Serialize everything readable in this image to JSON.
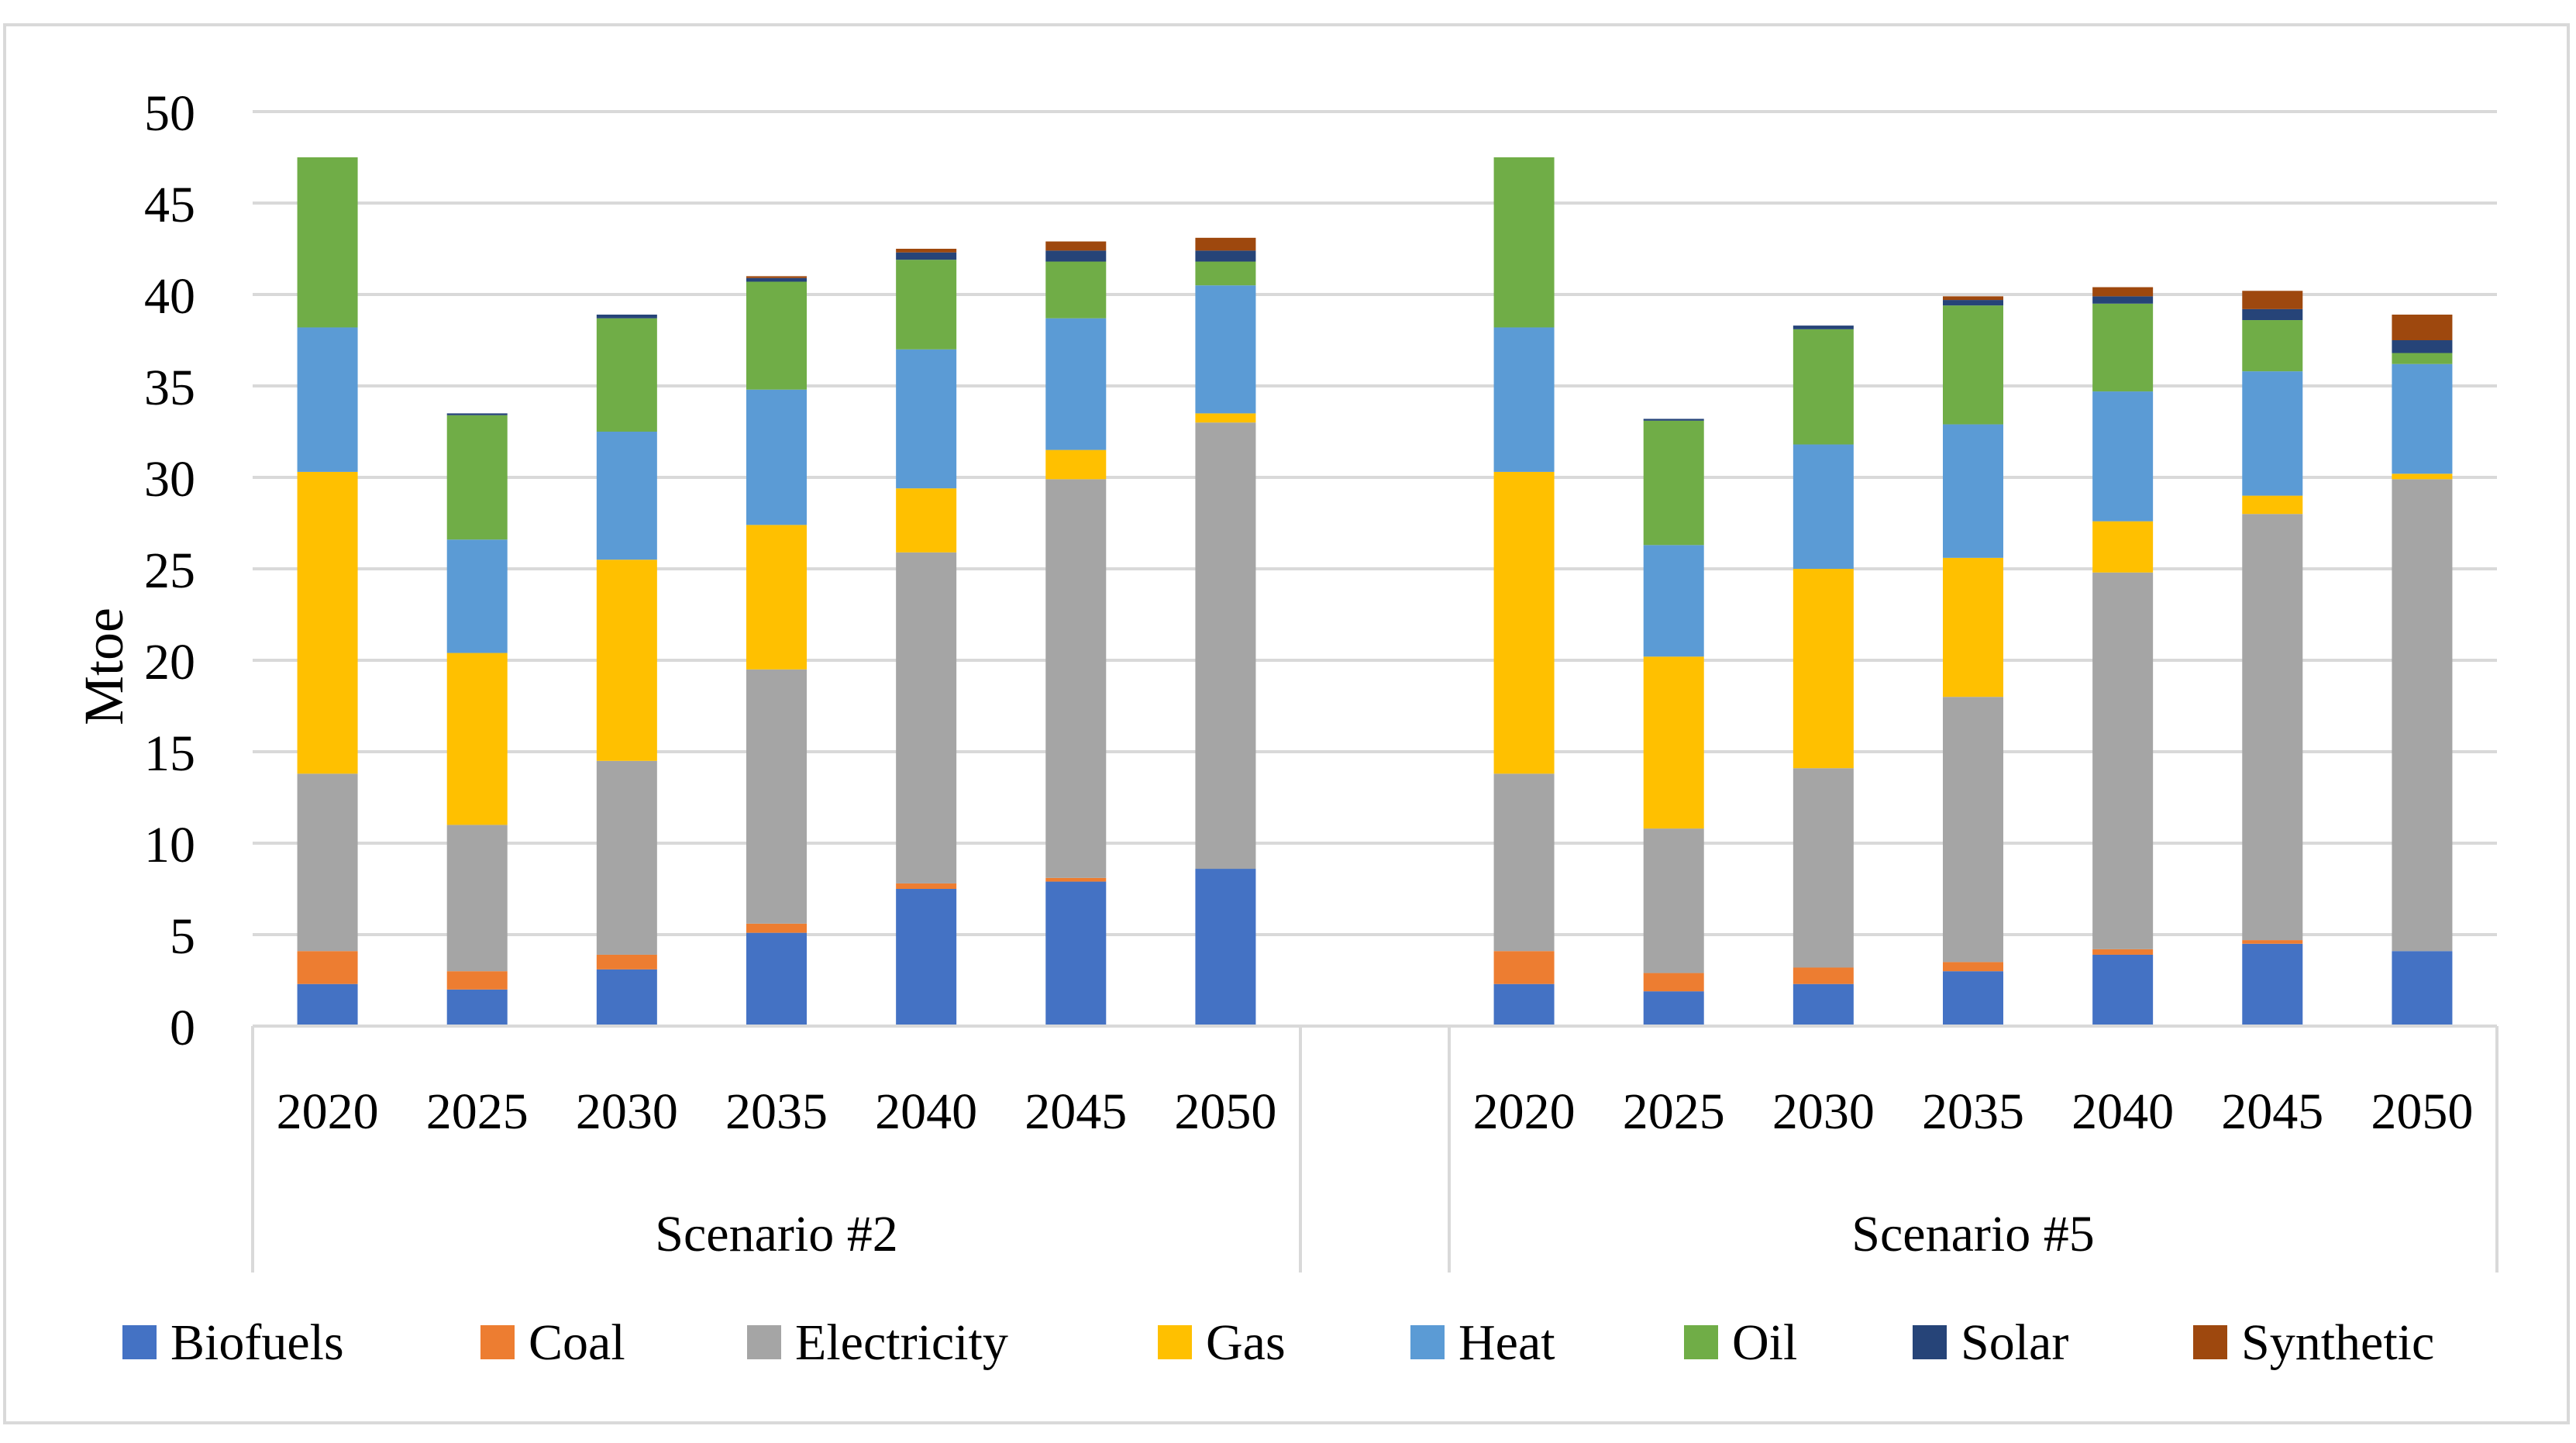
{
  "chart_data": {
    "type": "bar",
    "stacked": true,
    "title": "",
    "xlabel": "",
    "ylabel": "Mtoe",
    "ylim": [
      0,
      50
    ],
    "yticks": [
      "0",
      "5",
      "10",
      "15",
      "20",
      "25",
      "30",
      "35",
      "40",
      "45",
      "50"
    ],
    "grid": true,
    "legend_position": "bottom",
    "groups": [
      {
        "label": "Scenario #2",
        "categories": [
          "2020",
          "2025",
          "2030",
          "2035",
          "2040",
          "2045",
          "2050"
        ]
      },
      {
        "label": "Scenario #5",
        "categories": [
          "2020",
          "2025",
          "2030",
          "2035",
          "2040",
          "2045",
          "2050"
        ]
      }
    ],
    "series": [
      {
        "name": "Biofuels",
        "color": "#4472C4",
        "values": [
          2.3,
          2.0,
          3.1,
          5.1,
          7.5,
          7.9,
          8.6,
          2.3,
          1.9,
          2.3,
          3.0,
          3.9,
          4.5,
          4.1
        ]
      },
      {
        "name": "Coal",
        "color": "#ED7D31",
        "values": [
          1.8,
          1.0,
          0.8,
          0.5,
          0.3,
          0.2,
          0.0,
          1.8,
          1.0,
          0.9,
          0.5,
          0.3,
          0.2,
          0.0
        ]
      },
      {
        "name": "Electricity",
        "color": "#A5A5A5",
        "values": [
          9.7,
          8.0,
          10.6,
          13.9,
          18.1,
          21.8,
          24.4,
          9.7,
          7.9,
          10.9,
          14.5,
          20.6,
          23.3,
          25.8
        ]
      },
      {
        "name": "Gas",
        "color": "#FFC000",
        "values": [
          16.5,
          9.4,
          11.0,
          7.9,
          3.5,
          1.6,
          0.5,
          16.5,
          9.4,
          10.9,
          7.6,
          2.8,
          1.0,
          0.3
        ]
      },
      {
        "name": "Heat",
        "color": "#5B9BD5",
        "values": [
          7.9,
          6.2,
          7.0,
          7.4,
          7.6,
          7.2,
          7.0,
          7.9,
          6.1,
          6.8,
          7.3,
          7.1,
          6.8,
          6.0
        ]
      },
      {
        "name": "Oil",
        "color": "#70AD47",
        "values": [
          9.3,
          6.8,
          6.2,
          5.9,
          4.9,
          3.1,
          1.3,
          9.3,
          6.8,
          6.3,
          6.5,
          4.8,
          2.8,
          0.6
        ]
      },
      {
        "name": "Solar",
        "color": "#264478",
        "values": [
          0.0,
          0.1,
          0.2,
          0.2,
          0.4,
          0.6,
          0.6,
          0.0,
          0.1,
          0.2,
          0.3,
          0.4,
          0.6,
          0.7
        ]
      },
      {
        "name": "Synthetic",
        "color": "#9E480E",
        "values": [
          0.0,
          0.0,
          0.0,
          0.1,
          0.2,
          0.5,
          0.7,
          0.0,
          0.0,
          0.0,
          0.2,
          0.5,
          1.0,
          1.4
        ]
      }
    ]
  }
}
